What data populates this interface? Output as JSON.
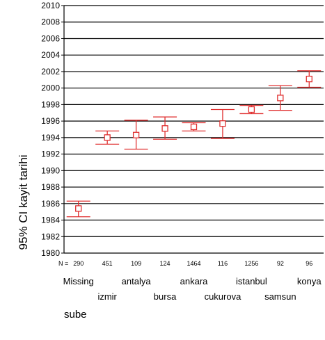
{
  "chart_data": {
    "type": "errorbar",
    "ylabel": "95% CI kayit tarihi",
    "xlabel": "sube",
    "ylim": [
      1980,
      2010
    ],
    "y_ticks": [
      1980,
      1982,
      1984,
      1986,
      1988,
      1990,
      1992,
      1994,
      1996,
      1998,
      2000,
      2002,
      2004,
      2006,
      2008,
      2010
    ],
    "grid": true,
    "n_prefix": "N =",
    "series_color": "#e03030",
    "categories": [
      "Missing",
      "izmir",
      "antalya",
      "bursa",
      "ankara",
      "cukurova",
      "istanbul",
      "samsun",
      "konya"
    ],
    "n": [
      "290",
      "451",
      "109",
      "124",
      "1464",
      "116",
      "1256",
      "92",
      "96"
    ],
    "mean": [
      1985.4,
      1994.0,
      1994.3,
      1995.1,
      1995.3,
      1995.7,
      1997.4,
      1998.8,
      2001.1
    ],
    "lower": [
      1984.4,
      1993.2,
      1992.6,
      1993.8,
      1994.8,
      1993.9,
      1996.9,
      1997.3,
      2000.1
    ],
    "upper": [
      1986.3,
      1994.8,
      1996.1,
      1996.5,
      1995.8,
      1997.4,
      1997.9,
      2000.3,
      2002.1
    ]
  }
}
